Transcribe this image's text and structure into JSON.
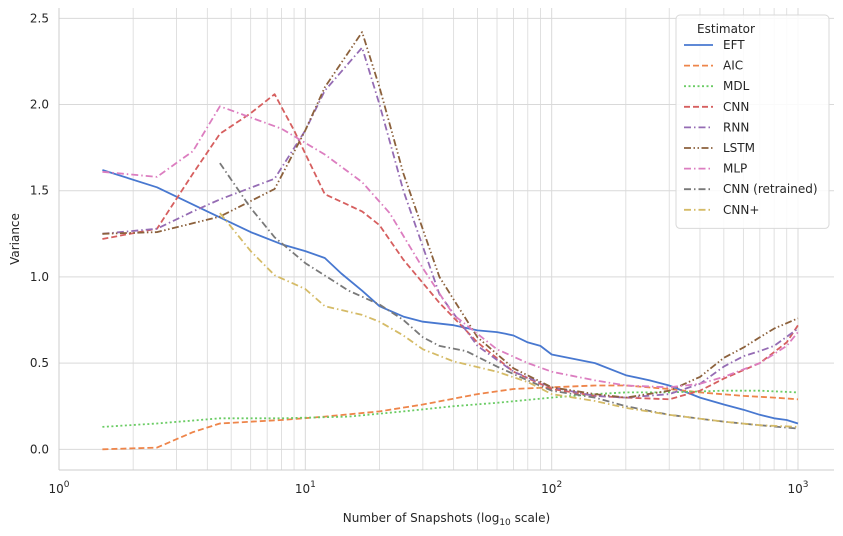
{
  "chart_data": {
    "type": "line",
    "xlabel_main": "Number of Snapshots (log",
    "xlabel_sub": "10",
    "xlabel_end": " scale)",
    "ylabel": "Variance",
    "x_scale": "log10",
    "xlim": [
      1,
      1400
    ],
    "ylim": [
      -0.12,
      2.56
    ],
    "x_ticks": [
      {
        "value": 1,
        "base": "10",
        "exp": "0"
      },
      {
        "value": 10,
        "base": "10",
        "exp": "1"
      },
      {
        "value": 100,
        "base": "10",
        "exp": "2"
      },
      {
        "value": 1000,
        "base": "10",
        "exp": "3"
      }
    ],
    "y_ticks": [
      {
        "value": 0.0,
        "label": "0.0"
      },
      {
        "value": 0.5,
        "label": "0.5"
      },
      {
        "value": 1.0,
        "label": "1.0"
      },
      {
        "value": 1.5,
        "label": "1.5"
      },
      {
        "value": 2.0,
        "label": "2.0"
      },
      {
        "value": 2.5,
        "label": "2.5"
      }
    ],
    "grid": true,
    "legend": {
      "title": "Estimator",
      "placement": "top-right"
    },
    "series": [
      {
        "name": "EFT",
        "color": "#4878d0",
        "dash": "solid",
        "points": [
          [
            1.5,
            1.62
          ],
          [
            2.5,
            1.52
          ],
          [
            4,
            1.38
          ],
          [
            6,
            1.26
          ],
          [
            8,
            1.19
          ],
          [
            10,
            1.15
          ],
          [
            12,
            1.11
          ],
          [
            14,
            1.02
          ],
          [
            17,
            0.92
          ],
          [
            20,
            0.83
          ],
          [
            25,
            0.77
          ],
          [
            30,
            0.74
          ],
          [
            40,
            0.72
          ],
          [
            50,
            0.69
          ],
          [
            60,
            0.68
          ],
          [
            65,
            0.67
          ],
          [
            70,
            0.66
          ],
          [
            80,
            0.62
          ],
          [
            90,
            0.6
          ],
          [
            100,
            0.55
          ],
          [
            150,
            0.5
          ],
          [
            200,
            0.43
          ],
          [
            250,
            0.4
          ],
          [
            300,
            0.37
          ],
          [
            400,
            0.3
          ],
          [
            500,
            0.26
          ],
          [
            600,
            0.23
          ],
          [
            700,
            0.2
          ],
          [
            800,
            0.18
          ],
          [
            900,
            0.17
          ],
          [
            1000,
            0.15
          ]
        ]
      },
      {
        "name": "AIC",
        "color": "#ee854a",
        "dash": "dashed",
        "points": [
          [
            1.5,
            0.0
          ],
          [
            2.5,
            0.01
          ],
          [
            3.5,
            0.1
          ],
          [
            4.5,
            0.15
          ],
          [
            6,
            0.16
          ],
          [
            8,
            0.17
          ],
          [
            12,
            0.19
          ],
          [
            20,
            0.22
          ],
          [
            30,
            0.26
          ],
          [
            50,
            0.32
          ],
          [
            70,
            0.35
          ],
          [
            100,
            0.36
          ],
          [
            150,
            0.37
          ],
          [
            200,
            0.37
          ],
          [
            300,
            0.35
          ],
          [
            400,
            0.33
          ],
          [
            600,
            0.31
          ],
          [
            800,
            0.3
          ],
          [
            1000,
            0.29
          ]
        ]
      },
      {
        "name": "MDL",
        "color": "#6acc64",
        "dash": "dotted",
        "points": [
          [
            1.5,
            0.13
          ],
          [
            2.5,
            0.15
          ],
          [
            4.5,
            0.18
          ],
          [
            8,
            0.18
          ],
          [
            15,
            0.19
          ],
          [
            25,
            0.22
          ],
          [
            40,
            0.25
          ],
          [
            60,
            0.27
          ],
          [
            100,
            0.3
          ],
          [
            150,
            0.32
          ],
          [
            200,
            0.33
          ],
          [
            300,
            0.33
          ],
          [
            500,
            0.34
          ],
          [
            700,
            0.34
          ],
          [
            1000,
            0.33
          ]
        ]
      },
      {
        "name": "CNN",
        "color": "#d65f5f",
        "dash": "dashed",
        "points": [
          [
            1.5,
            1.22
          ],
          [
            2.5,
            1.28
          ],
          [
            3.5,
            1.6
          ],
          [
            4.5,
            1.83
          ],
          [
            6,
            1.95
          ],
          [
            7.5,
            2.06
          ],
          [
            9,
            1.85
          ],
          [
            12,
            1.48
          ],
          [
            17,
            1.38
          ],
          [
            20,
            1.3
          ],
          [
            25,
            1.1
          ],
          [
            35,
            0.85
          ],
          [
            50,
            0.62
          ],
          [
            70,
            0.45
          ],
          [
            100,
            0.35
          ],
          [
            150,
            0.31
          ],
          [
            200,
            0.3
          ],
          [
            300,
            0.29
          ],
          [
            400,
            0.34
          ],
          [
            500,
            0.41
          ],
          [
            700,
            0.5
          ],
          [
            900,
            0.62
          ],
          [
            1000,
            0.72
          ]
        ]
      },
      {
        "name": "RNN",
        "color": "#956cb4",
        "dash": "dashdot",
        "points": [
          [
            1.5,
            1.25
          ],
          [
            2.5,
            1.28
          ],
          [
            3.5,
            1.38
          ],
          [
            4.5,
            1.45
          ],
          [
            7.5,
            1.57
          ],
          [
            10,
            1.85
          ],
          [
            12,
            2.08
          ],
          [
            17,
            2.33
          ],
          [
            20,
            2.0
          ],
          [
            25,
            1.5
          ],
          [
            35,
            0.9
          ],
          [
            50,
            0.6
          ],
          [
            70,
            0.45
          ],
          [
            100,
            0.36
          ],
          [
            150,
            0.31
          ],
          [
            200,
            0.3
          ],
          [
            300,
            0.32
          ],
          [
            400,
            0.38
          ],
          [
            500,
            0.48
          ],
          [
            600,
            0.54
          ],
          [
            700,
            0.57
          ],
          [
            800,
            0.6
          ],
          [
            1000,
            0.7
          ]
        ]
      },
      {
        "name": "LSTM",
        "color": "#8c613c",
        "dash": "dashdotdot",
        "points": [
          [
            1.5,
            1.25
          ],
          [
            2.5,
            1.26
          ],
          [
            4.5,
            1.35
          ],
          [
            7.5,
            1.51
          ],
          [
            10,
            1.85
          ],
          [
            12,
            2.1
          ],
          [
            17,
            2.42
          ],
          [
            20,
            2.1
          ],
          [
            25,
            1.6
          ],
          [
            35,
            1.0
          ],
          [
            50,
            0.65
          ],
          [
            70,
            0.47
          ],
          [
            100,
            0.36
          ],
          [
            150,
            0.32
          ],
          [
            200,
            0.3
          ],
          [
            300,
            0.34
          ],
          [
            400,
            0.42
          ],
          [
            500,
            0.53
          ],
          [
            600,
            0.59
          ],
          [
            700,
            0.65
          ],
          [
            800,
            0.7
          ],
          [
            1000,
            0.76
          ]
        ]
      },
      {
        "name": "MLP",
        "color": "#dc7ec0",
        "dash": "dashdot",
        "points": [
          [
            1.5,
            1.61
          ],
          [
            2.5,
            1.58
          ],
          [
            3.5,
            1.73
          ],
          [
            4.5,
            1.99
          ],
          [
            8,
            1.86
          ],
          [
            12,
            1.71
          ],
          [
            17,
            1.55
          ],
          [
            22,
            1.37
          ],
          [
            30,
            1.05
          ],
          [
            40,
            0.78
          ],
          [
            60,
            0.58
          ],
          [
            80,
            0.5
          ],
          [
            100,
            0.45
          ],
          [
            150,
            0.4
          ],
          [
            200,
            0.37
          ],
          [
            300,
            0.36
          ],
          [
            400,
            0.38
          ],
          [
            500,
            0.42
          ],
          [
            700,
            0.5
          ],
          [
            900,
            0.6
          ],
          [
            1000,
            0.68
          ]
        ]
      },
      {
        "name": "CNN (retrained)",
        "color": "#797979",
        "dash": "dashdot",
        "points": [
          [
            4.5,
            1.66
          ],
          [
            6,
            1.4
          ],
          [
            7.5,
            1.23
          ],
          [
            10,
            1.08
          ],
          [
            15,
            0.92
          ],
          [
            20,
            0.84
          ],
          [
            25,
            0.75
          ],
          [
            30,
            0.65
          ],
          [
            35,
            0.6
          ],
          [
            45,
            0.57
          ],
          [
            60,
            0.48
          ],
          [
            80,
            0.4
          ],
          [
            100,
            0.34
          ],
          [
            150,
            0.3
          ],
          [
            200,
            0.25
          ],
          [
            300,
            0.2
          ],
          [
            500,
            0.16
          ],
          [
            700,
            0.14
          ],
          [
            1000,
            0.12
          ]
        ]
      },
      {
        "name": "CNN+",
        "color": "#d5bb67",
        "dash": "dashdot",
        "points": [
          [
            4.5,
            1.37
          ],
          [
            6,
            1.15
          ],
          [
            7.5,
            1.01
          ],
          [
            10,
            0.93
          ],
          [
            12,
            0.83
          ],
          [
            17,
            0.78
          ],
          [
            20,
            0.74
          ],
          [
            25,
            0.66
          ],
          [
            30,
            0.58
          ],
          [
            40,
            0.51
          ],
          [
            60,
            0.45
          ],
          [
            80,
            0.39
          ],
          [
            100,
            0.32
          ],
          [
            150,
            0.28
          ],
          [
            200,
            0.24
          ],
          [
            300,
            0.2
          ],
          [
            500,
            0.16
          ],
          [
            700,
            0.14
          ],
          [
            1000,
            0.13
          ]
        ]
      }
    ]
  }
}
